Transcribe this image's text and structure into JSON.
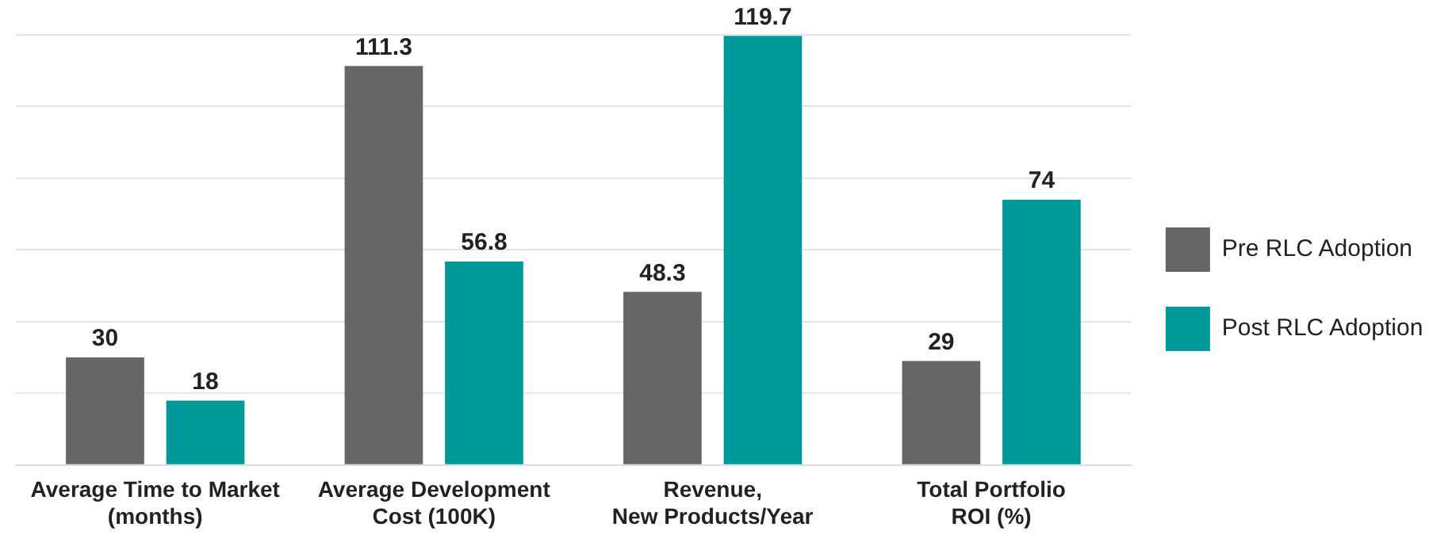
{
  "chart_data": {
    "type": "bar",
    "categories": [
      "Average Time to Market\n(months)",
      "Average Development\nCost (100K)",
      "Revenue,\nNew Products/Year",
      "Total Portfolio\nROI (%)"
    ],
    "series": [
      {
        "name": "Pre RLC Adoption",
        "color": "#666666",
        "values": [
          30,
          111.3,
          48.3,
          29
        ]
      },
      {
        "name": "Post RLC Adoption",
        "color": "#009999",
        "values": [
          18,
          56.8,
          119.7,
          74
        ]
      }
    ],
    "grid": "y",
    "legend": "right",
    "tick_labels": "x",
    "data_labels": true
  }
}
